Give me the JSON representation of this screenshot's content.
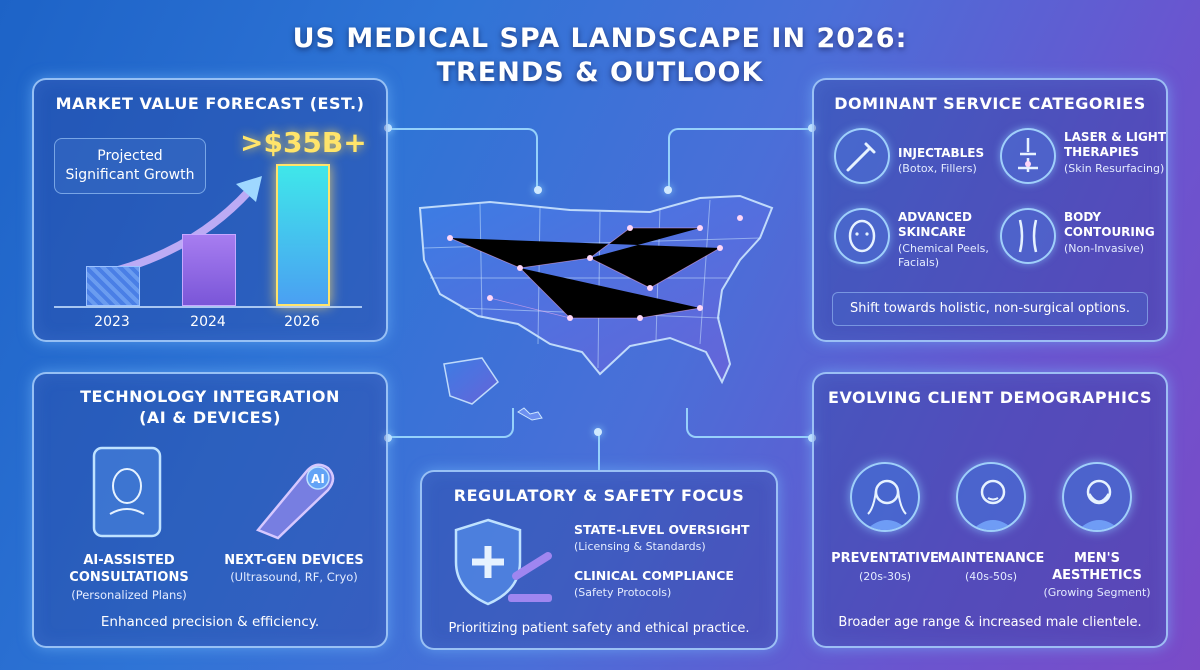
{
  "title_line1": "US MEDICAL SPA LANDSCAPE IN 2026:",
  "title_line2": "TRENDS & OUTLOOK",
  "market": {
    "title": "MARKET VALUE FORECAST (EST.)",
    "projected_line1": "Projected",
    "projected_line2": "Significant Growth",
    "headline_value": ">$35B+",
    "chart_data": {
      "type": "bar",
      "categories": [
        "2023",
        "2024",
        "2026"
      ],
      "bar_colors": [
        "#4a7fe6",
        "#8a64e0",
        "#3fe7ea"
      ]
    }
  },
  "services": {
    "title": "DOMINANT SERVICE CATEGORIES",
    "items": [
      {
        "name": "INJECTABLES",
        "sub": "(Botox, Fillers)",
        "icon": "syringe-icon"
      },
      {
        "name_line1": "LASER & LIGHT",
        "name_line2": "THERAPIES",
        "sub": "(Skin Resurfacing)",
        "icon": "laser-icon"
      },
      {
        "name_line1": "ADVANCED",
        "name_line2": "SKINCARE",
        "sub_line1": "(Chemical Peels,",
        "sub_line2": "Facials)",
        "icon": "face-skincare-icon"
      },
      {
        "name_line1": "BODY",
        "name_line2": "CONTOURING",
        "sub": "(Non-Invasive)",
        "icon": "body-contour-icon"
      }
    ],
    "note": "Shift towards holistic, non-surgical options."
  },
  "tech": {
    "title_line1": "TECHNOLOGY INTEGRATION",
    "title_line2": "(AI & DEVICES)",
    "feature1_line1": "AI-ASSISTED",
    "feature1_line2": "CONSULTATIONS",
    "feature1_sub": "(Personalized Plans)",
    "feature2_name": "NEXT-GEN DEVICES",
    "feature2_sub": "(Ultrasound, RF, Cryo)",
    "device_label": "AI",
    "note": "Enhanced precision & efficiency."
  },
  "regulatory": {
    "title": "REGULATORY & SAFETY FOCUS",
    "item1_name": "STATE-LEVEL OVERSIGHT",
    "item1_sub": "(Licensing & Standards)",
    "item2_name": "CLINICAL COMPLIANCE",
    "item2_sub": "(Safety Protocols)",
    "note": "Prioritizing patient safety and ethical practice."
  },
  "demographics": {
    "title": "EVOLVING CLIENT DEMOGRAPHICS",
    "groups": [
      {
        "name": "PREVENTATIVE",
        "sub": "(20s-30s)"
      },
      {
        "name": "MAINTENANCE",
        "sub": "(40s-50s)"
      },
      {
        "name_line1": "MEN'S",
        "name_line2": "AESTHETICS",
        "sub": "(Growing Segment)"
      }
    ],
    "note": "Broader age range & increased male clientele."
  },
  "colors": {
    "accent_gold": "#ffe46b",
    "glow_blue": "#8fd3ff",
    "panel_border": "#aad2ff"
  }
}
